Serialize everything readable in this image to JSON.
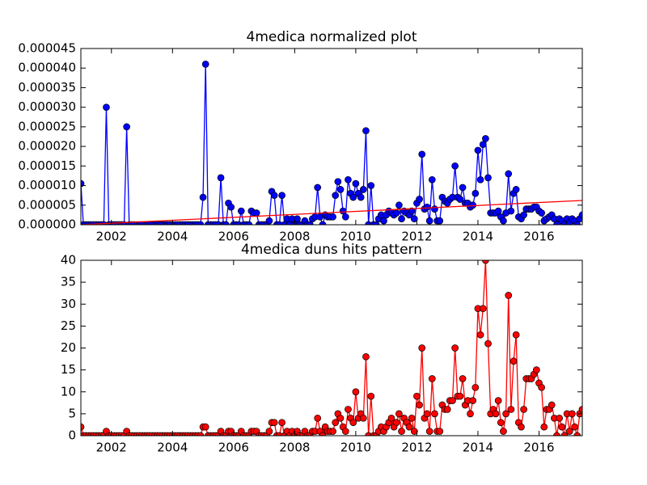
{
  "chart_data": [
    {
      "type": "line",
      "title": "4medica normalized plot",
      "x": [
        2001,
        2001.083,
        2001.167,
        2001.25,
        2001.333,
        2001.417,
        2001.5,
        2001.583,
        2001.667,
        2001.75,
        2001.833,
        2001.917,
        2002,
        2002.083,
        2002.167,
        2002.25,
        2002.333,
        2002.417,
        2002.5,
        2002.583,
        2002.667,
        2002.75,
        2002.833,
        2002.917,
        2003,
        2003.083,
        2003.167,
        2003.25,
        2003.333,
        2003.417,
        2003.5,
        2003.583,
        2003.667,
        2003.75,
        2003.833,
        2003.917,
        2004,
        2004.083,
        2004.167,
        2004.25,
        2004.333,
        2004.417,
        2004.5,
        2004.583,
        2004.667,
        2004.75,
        2004.833,
        2004.917,
        2005,
        2005.083,
        2005.167,
        2005.25,
        2005.333,
        2005.417,
        2005.5,
        2005.583,
        2005.667,
        2005.75,
        2005.833,
        2005.917,
        2006,
        2006.083,
        2006.167,
        2006.25,
        2006.333,
        2006.417,
        2006.5,
        2006.583,
        2006.667,
        2006.75,
        2006.833,
        2006.917,
        2007,
        2007.083,
        2007.167,
        2007.25,
        2007.333,
        2007.417,
        2007.5,
        2007.583,
        2007.667,
        2007.75,
        2007.833,
        2007.917,
        2008,
        2008.083,
        2008.167,
        2008.25,
        2008.333,
        2008.417,
        2008.5,
        2008.583,
        2008.667,
        2008.75,
        2008.833,
        2008.917,
        2009,
        2009.083,
        2009.167,
        2009.25,
        2009.333,
        2009.417,
        2009.5,
        2009.583,
        2009.667,
        2009.75,
        2009.833,
        2009.917,
        2010,
        2010.083,
        2010.167,
        2010.25,
        2010.333,
        2010.417,
        2010.5,
        2010.583,
        2010.667,
        2010.75,
        2010.833,
        2010.917,
        2011,
        2011.083,
        2011.167,
        2011.25,
        2011.333,
        2011.417,
        2011.5,
        2011.583,
        2011.667,
        2011.75,
        2011.833,
        2011.917,
        2012,
        2012.083,
        2012.167,
        2012.25,
        2012.333,
        2012.417,
        2012.5,
        2012.583,
        2012.667,
        2012.75,
        2012.833,
        2012.917,
        2013,
        2013.083,
        2013.167,
        2013.25,
        2013.333,
        2013.417,
        2013.5,
        2013.583,
        2013.667,
        2013.75,
        2013.833,
        2013.917,
        2014,
        2014.083,
        2014.167,
        2014.25,
        2014.333,
        2014.417,
        2014.5,
        2014.583,
        2014.667,
        2014.75,
        2014.833,
        2014.917,
        2015,
        2015.083,
        2015.167,
        2015.25,
        2015.333,
        2015.417,
        2015.5,
        2015.583,
        2015.667,
        2015.75,
        2015.833,
        2015.917,
        2016,
        2016.083,
        2016.167,
        2016.25,
        2016.333,
        2016.417,
        2016.5,
        2016.583,
        2016.667,
        2016.75,
        2016.833,
        2016.917,
        2017,
        2017.083,
        2017.167,
        2017.25,
        2017.333,
        2017.417
      ],
      "series": [
        {
          "color": "#0000ff",
          "markers": true,
          "values": [
            1.05e-05,
            0,
            0,
            0,
            0,
            0,
            0,
            0,
            0,
            0,
            3e-05,
            0,
            0,
            0,
            0,
            0,
            0,
            0,
            2.5e-05,
            0,
            0,
            0,
            0,
            0,
            0,
            0,
            0,
            0,
            0,
            0,
            0,
            0,
            0,
            0,
            0,
            0,
            0,
            0,
            0,
            0,
            0,
            0,
            0,
            0,
            0,
            0,
            0,
            0,
            7e-06,
            4.1e-05,
            0,
            0,
            0,
            0,
            0,
            1.2e-05,
            0,
            0,
            5.5e-06,
            4.5e-06,
            0,
            0,
            0,
            3.5e-06,
            0,
            0,
            0,
            3.5e-06,
            3e-06,
            3e-06,
            0,
            0,
            0,
            0,
            1e-06,
            8.5e-06,
            7.5e-06,
            0,
            0,
            7.5e-06,
            0,
            1.5e-06,
            0,
            1.5e-06,
            0,
            1.5e-06,
            0,
            0,
            1e-06,
            0,
            0,
            1.5e-06,
            2e-06,
            9.5e-06,
            2e-06,
            0,
            2.5e-06,
            2e-06,
            2e-06,
            2e-06,
            7.5e-06,
            1.1e-05,
            9e-06,
            3.5e-06,
            2e-06,
            1.15e-05,
            8e-06,
            7e-06,
            1.05e-05,
            8e-06,
            7e-06,
            9e-06,
            2.4e-05,
            0,
            1e-05,
            0,
            0,
            1.5e-06,
            2.5e-06,
            1e-06,
            2.5e-06,
            3.5e-06,
            3e-06,
            2.5e-06,
            3e-06,
            5e-06,
            1.5e-06,
            3.5e-06,
            3e-06,
            2.5e-06,
            3.5e-06,
            1.5e-06,
            5.5e-06,
            6.5e-06,
            1.8e-05,
            4e-06,
            4.5e-06,
            1e-06,
            1.15e-05,
            4e-06,
            1e-06,
            1e-06,
            7e-06,
            6e-06,
            5.5e-06,
            6.5e-06,
            7e-06,
            1.5e-05,
            7e-06,
            6.5e-06,
            9.5e-06,
            5.5e-06,
            5.5e-06,
            4.5e-06,
            5e-06,
            8e-06,
            1.9e-05,
            1.15e-05,
            2.05e-05,
            2.2e-05,
            1.2e-05,
            3e-06,
            3e-06,
            3e-06,
            3.5e-06,
            2e-06,
            1e-06,
            3e-06,
            1.3e-05,
            3.5e-06,
            8e-06,
            9e-06,
            2e-06,
            1.5e-06,
            2.5e-06,
            4e-06,
            4e-06,
            4e-06,
            4.5e-06,
            4.5e-06,
            3.5e-06,
            3e-06,
            1e-06,
            1.5e-06,
            2e-06,
            2.5e-06,
            1.5e-06,
            0,
            1.5e-06,
            1e-06,
            0,
            1.5e-06,
            5e-07,
            1.5e-06,
            1e-06,
            0,
            1.5e-06,
            2.5e-06
          ]
        },
        {
          "color": "#ff0000",
          "markers": false,
          "x": [
            2001,
            2017.417
          ],
          "values": [
            0,
            6.2e-06
          ]
        }
      ],
      "xlim": [
        2001,
        2017.417
      ],
      "xticks": [
        2002,
        2004,
        2006,
        2008,
        2010,
        2012,
        2014,
        2016
      ],
      "ylim": [
        0,
        4.5e-05
      ],
      "yticks": [
        {
          "value": 0,
          "label": "0.000000"
        },
        {
          "value": 5e-06,
          "label": "0.000005"
        },
        {
          "value": 1e-05,
          "label": "0.000010"
        },
        {
          "value": 1.5e-05,
          "label": "0.000015"
        },
        {
          "value": 2e-05,
          "label": "0.000020"
        },
        {
          "value": 2.5e-05,
          "label": "0.000025"
        },
        {
          "value": 3e-05,
          "label": "0.000030"
        },
        {
          "value": 3.5e-05,
          "label": "0.000035"
        },
        {
          "value": 4e-05,
          "label": "0.000040"
        },
        {
          "value": 4.5e-05,
          "label": "0.000045"
        }
      ]
    },
    {
      "type": "line",
      "title": "4medica duns hits pattern",
      "x": [
        2001,
        2001.083,
        2001.167,
        2001.25,
        2001.333,
        2001.417,
        2001.5,
        2001.583,
        2001.667,
        2001.75,
        2001.833,
        2001.917,
        2002,
        2002.083,
        2002.167,
        2002.25,
        2002.333,
        2002.417,
        2002.5,
        2002.583,
        2002.667,
        2002.75,
        2002.833,
        2002.917,
        2003,
        2003.083,
        2003.167,
        2003.25,
        2003.333,
        2003.417,
        2003.5,
        2003.583,
        2003.667,
        2003.75,
        2003.833,
        2003.917,
        2004,
        2004.083,
        2004.167,
        2004.25,
        2004.333,
        2004.417,
        2004.5,
        2004.583,
        2004.667,
        2004.75,
        2004.833,
        2004.917,
        2005,
        2005.083,
        2005.167,
        2005.25,
        2005.333,
        2005.417,
        2005.5,
        2005.583,
        2005.667,
        2005.75,
        2005.833,
        2005.917,
        2006,
        2006.083,
        2006.167,
        2006.25,
        2006.333,
        2006.417,
        2006.5,
        2006.583,
        2006.667,
        2006.75,
        2006.833,
        2006.917,
        2007,
        2007.083,
        2007.167,
        2007.25,
        2007.333,
        2007.417,
        2007.5,
        2007.583,
        2007.667,
        2007.75,
        2007.833,
        2007.917,
        2008,
        2008.083,
        2008.167,
        2008.25,
        2008.333,
        2008.417,
        2008.5,
        2008.583,
        2008.667,
        2008.75,
        2008.833,
        2008.917,
        2009,
        2009.083,
        2009.167,
        2009.25,
        2009.333,
        2009.417,
        2009.5,
        2009.583,
        2009.667,
        2009.75,
        2009.833,
        2009.917,
        2010,
        2010.083,
        2010.167,
        2010.25,
        2010.333,
        2010.417,
        2010.5,
        2010.583,
        2010.667,
        2010.75,
        2010.833,
        2010.917,
        2011,
        2011.083,
        2011.167,
        2011.25,
        2011.333,
        2011.417,
        2011.5,
        2011.583,
        2011.667,
        2011.75,
        2011.833,
        2011.917,
        2012,
        2012.083,
        2012.167,
        2012.25,
        2012.333,
        2012.417,
        2012.5,
        2012.583,
        2012.667,
        2012.75,
        2012.833,
        2012.917,
        2013,
        2013.083,
        2013.167,
        2013.25,
        2013.333,
        2013.417,
        2013.5,
        2013.583,
        2013.667,
        2013.75,
        2013.833,
        2013.917,
        2014,
        2014.083,
        2014.167,
        2014.25,
        2014.333,
        2014.417,
        2014.5,
        2014.583,
        2014.667,
        2014.75,
        2014.833,
        2014.917,
        2015,
        2015.083,
        2015.167,
        2015.25,
        2015.333,
        2015.417,
        2015.5,
        2015.583,
        2015.667,
        2015.75,
        2015.833,
        2015.917,
        2016,
        2016.083,
        2016.167,
        2016.25,
        2016.333,
        2016.417,
        2016.5,
        2016.583,
        2016.667,
        2016.75,
        2016.833,
        2016.917,
        2017,
        2017.083,
        2017.167,
        2017.25,
        2017.333,
        2017.417
      ],
      "series": [
        {
          "color": "#ff0000",
          "markers": true,
          "values": [
            2,
            0,
            0,
            0,
            0,
            0,
            0,
            0,
            0,
            0,
            1,
            0,
            0,
            0,
            0,
            0,
            0,
            0,
            1,
            0,
            0,
            0,
            0,
            0,
            0,
            0,
            0,
            0,
            0,
            0,
            0,
            0,
            0,
            0,
            0,
            0,
            0,
            0,
            0,
            0,
            0,
            0,
            0,
            0,
            0,
            0,
            0,
            0,
            2,
            2,
            0,
            0,
            0,
            0,
            0,
            1,
            0,
            0,
            1,
            1,
            0,
            0,
            0,
            1,
            0,
            0,
            0,
            1,
            1,
            1,
            0,
            0,
            0,
            0,
            1,
            3,
            3,
            0,
            0,
            3,
            0,
            1,
            0,
            1,
            0,
            1,
            0,
            0,
            1,
            0,
            0,
            1,
            1,
            4,
            1,
            0,
            2,
            1,
            1,
            1,
            3,
            5,
            4,
            2,
            1,
            6,
            4,
            3,
            10,
            4,
            5,
            4,
            18,
            0,
            9,
            0,
            0,
            1,
            2,
            1,
            2,
            3,
            4,
            2,
            3,
            5,
            1,
            4,
            3,
            2,
            4,
            1,
            9,
            7,
            20,
            4,
            5,
            1,
            13,
            5,
            1,
            1,
            7,
            6,
            6,
            8,
            8,
            20,
            9,
            9,
            13,
            7,
            8,
            5,
            8,
            11,
            29,
            23,
            29,
            40,
            21,
            5,
            6,
            5,
            8,
            3,
            1,
            5,
            32,
            6,
            17,
            23,
            3,
            2,
            6,
            13,
            13,
            13,
            14,
            15,
            12,
            11,
            2,
            6,
            6,
            7,
            4,
            0,
            4,
            2,
            0,
            5,
            1,
            5,
            2,
            0,
            5,
            6
          ]
        }
      ],
      "xlim": [
        2001,
        2017.417
      ],
      "xticks": [
        2002,
        2004,
        2006,
        2008,
        2010,
        2012,
        2014,
        2016
      ],
      "ylim": [
        0,
        40
      ],
      "yticks": [
        0,
        5,
        10,
        15,
        20,
        25,
        30,
        35,
        40
      ]
    }
  ]
}
